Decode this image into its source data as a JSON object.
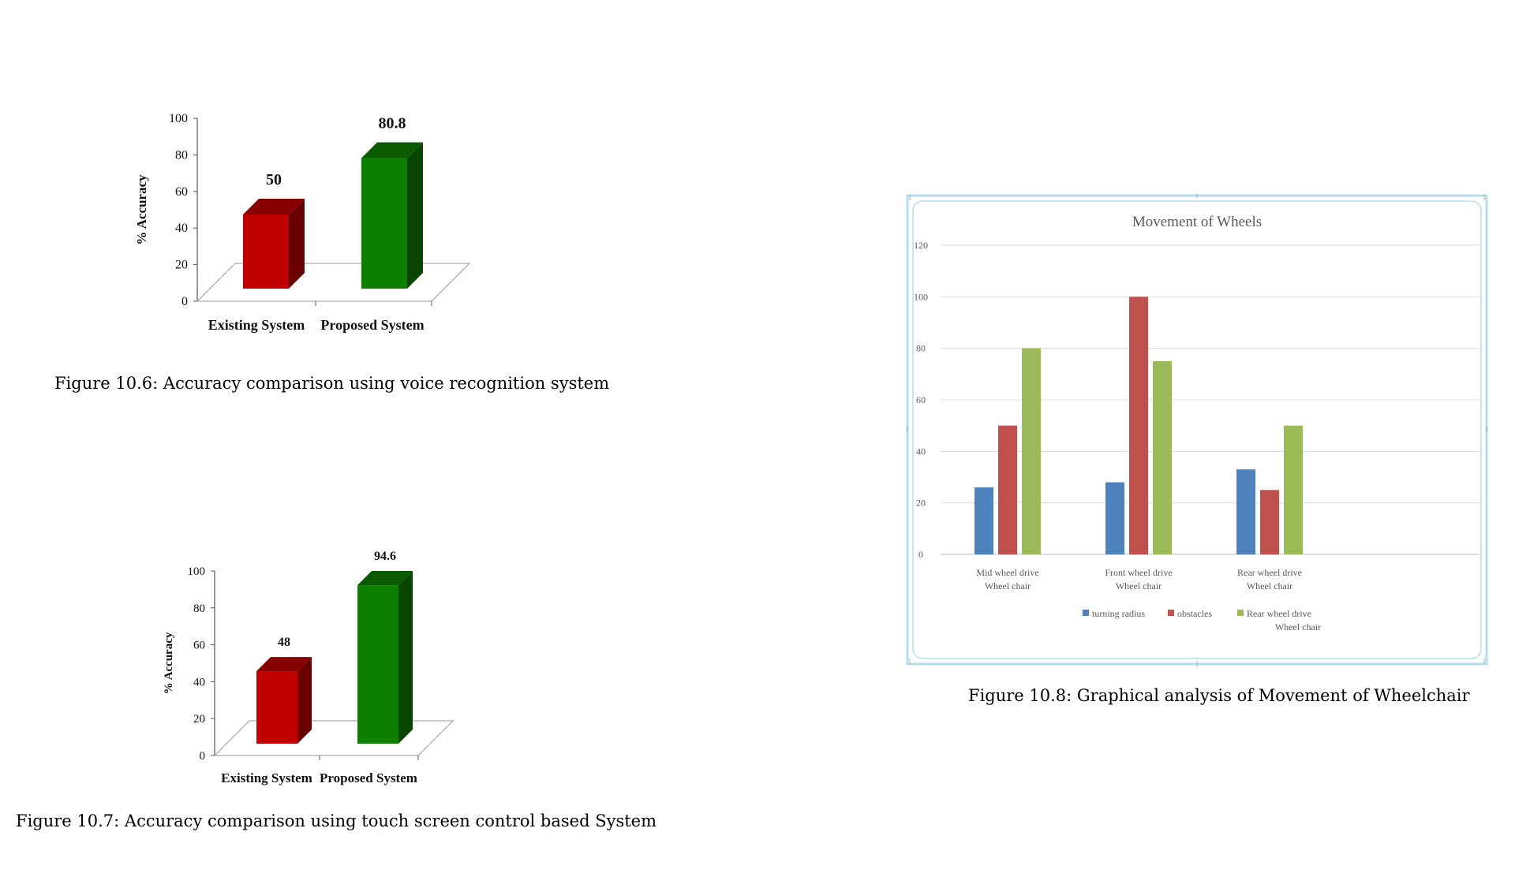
{
  "captions": {
    "fig1": "Figure 10.6: Accuracy comparison using voice recognition system",
    "fig2": "Figure 10.7: Accuracy comparison using touch screen control based System",
    "fig3": "Figure 10.8: Graphical analysis of Movement of Wheelchair"
  },
  "chart_data": [
    {
      "type": "bar",
      "title": "",
      "ylabel": "% Accuracy",
      "xlabel": "",
      "categories": [
        "Existing System",
        "Proposed System"
      ],
      "values": [
        50,
        80.8
      ],
      "data_labels": [
        "50",
        "80.8"
      ],
      "colors": [
        "#c00000",
        "#0e8000"
      ],
      "ylim": [
        0,
        100
      ],
      "yticks": [
        0,
        20,
        40,
        60,
        80,
        100
      ],
      "style": "3d"
    },
    {
      "type": "bar",
      "title": "",
      "ylabel": "% Accuracy",
      "xlabel": "",
      "categories": [
        "Existing System",
        "Proposed System"
      ],
      "values": [
        48,
        94.6
      ],
      "data_labels": [
        "48",
        "94.6"
      ],
      "colors": [
        "#c00000",
        "#0e8000"
      ],
      "ylim": [
        0,
        100
      ],
      "yticks": [
        0,
        20,
        40,
        60,
        80,
        100
      ],
      "style": "3d"
    },
    {
      "type": "bar",
      "title": "Movement of Wheels",
      "xlabel": "",
      "ylabel": "",
      "categories": [
        [
          "Mid wheel drive",
          "Wheel chair"
        ],
        [
          "Front wheel drive",
          "Wheel chair"
        ],
        [
          "Rear wheel drive",
          "Wheel chair"
        ]
      ],
      "series": [
        {
          "name": "turning radius",
          "color": "#4f81bd",
          "values": [
            26,
            28,
            33
          ]
        },
        {
          "name": "obstacles",
          "color": "#c0504d",
          "values": [
            50,
            100,
            25
          ]
        },
        {
          "name": "Rear wheel drive Wheel chair",
          "color": "#9bbb59",
          "values": [
            80,
            75,
            50
          ]
        }
      ],
      "legend_lines": [
        [
          "turning radius"
        ],
        [
          "obstacles"
        ],
        [
          "Rear wheel drive",
          "Wheel chair"
        ]
      ],
      "ylim": [
        0,
        120
      ],
      "yticks": [
        0,
        20,
        40,
        60,
        80,
        100,
        120
      ],
      "grid": true,
      "legend": "bottom"
    }
  ]
}
